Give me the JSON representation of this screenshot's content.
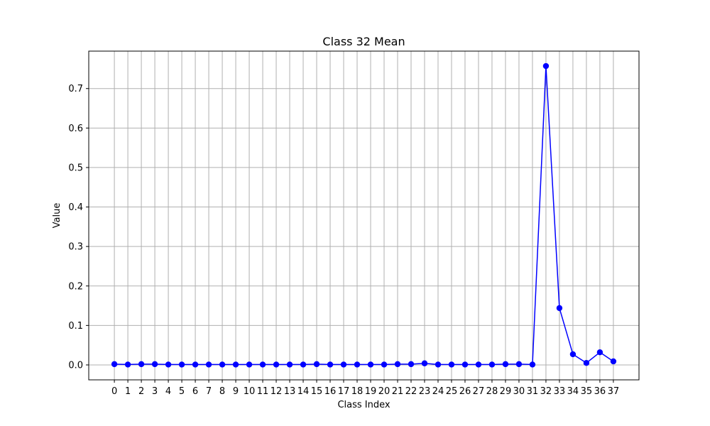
{
  "chart_data": {
    "type": "line",
    "title": "Class 32 Mean",
    "xlabel": "Class Index",
    "ylabel": "Value",
    "x": [
      0,
      1,
      2,
      3,
      4,
      5,
      6,
      7,
      8,
      9,
      10,
      11,
      12,
      13,
      14,
      15,
      16,
      17,
      18,
      19,
      20,
      21,
      22,
      23,
      24,
      25,
      26,
      27,
      28,
      29,
      30,
      31,
      32,
      33,
      34,
      35,
      36,
      37
    ],
    "x_tick_labels": [
      "0",
      "1",
      "2",
      "3",
      "4",
      "5",
      "6",
      "7",
      "8",
      "9",
      "10",
      "11",
      "12",
      "13",
      "14",
      "15",
      "16",
      "17",
      "18",
      "19",
      "20",
      "21",
      "22",
      "23",
      "24",
      "25",
      "26",
      "27",
      "28",
      "29",
      "30",
      "31",
      "32",
      "33",
      "34",
      "35",
      "36",
      "37"
    ],
    "series": [
      {
        "name": "Class 32 Mean",
        "values": [
          0.002,
          0.001,
          0.002,
          0.002,
          0.001,
          0.001,
          0.001,
          0.001,
          0.001,
          0.001,
          0.001,
          0.001,
          0.001,
          0.001,
          0.001,
          0.002,
          0.001,
          0.001,
          0.001,
          0.001,
          0.001,
          0.002,
          0.002,
          0.004,
          0.001,
          0.001,
          0.001,
          0.001,
          0.001,
          0.002,
          0.002,
          0.001,
          0.757,
          0.144,
          0.027,
          0.005,
          0.032,
          0.009
        ]
      }
    ],
    "xlim": [
      -1.9,
      38.9
    ],
    "ylim": [
      -0.0378,
      0.7948
    ],
    "y_ticks": [
      0.0,
      0.1,
      0.2,
      0.3,
      0.4,
      0.5,
      0.6,
      0.7
    ],
    "y_tick_labels": [
      "0.0",
      "0.1",
      "0.2",
      "0.3",
      "0.4",
      "0.5",
      "0.6",
      "0.7"
    ],
    "grid": true,
    "colors": {
      "line": "#0000ff",
      "marker": "#0000ff",
      "grid": "#b0b0b0",
      "axes": "#000000"
    }
  }
}
